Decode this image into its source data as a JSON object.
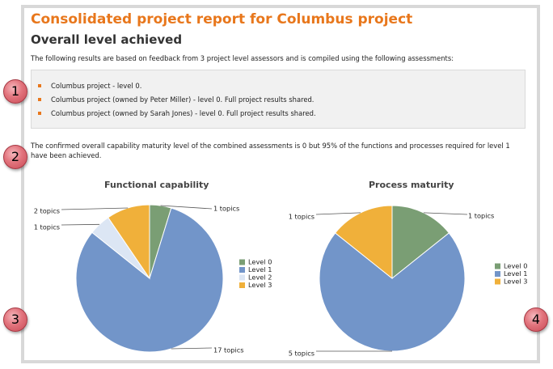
{
  "header": {
    "title": "Consolidated project report for Columbus project",
    "subtitle": "Overall level achieved",
    "intro": "The following results are based on feedback from 3 project level assessors and is compiled using the following assessments:"
  },
  "assessments": [
    "Columbus project - level 0.",
    "Columbus project (owned by Peter Miller) - level 0. Full project results shared.",
    "Columbus project (owned by Sarah Jones) - level 0. Full project results shared."
  ],
  "summary": "The confirmed overall capability maturity level of the combined assessments is 0 but 95% of the functions and processes required for level 1 have been achieved.",
  "markers": [
    "1",
    "2",
    "3",
    "4"
  ],
  "colors": {
    "title": "#e8771c",
    "level0": "#7a9e74",
    "level1": "#7295c9",
    "level2": "#dce6f4",
    "level3": "#f0b03a"
  },
  "chart_data": [
    {
      "type": "pie",
      "title": "Functional capability",
      "categories": [
        "Level 0",
        "Level 1",
        "Level 2",
        "Level 3"
      ],
      "values": [
        1,
        17,
        1,
        2
      ],
      "slice_labels": [
        "1 topics",
        "17 topics",
        "1 topics",
        "2 topics"
      ],
      "legend": [
        "Level 0",
        "Level 1",
        "Level 2",
        "Level 3"
      ],
      "legend_position": "right"
    },
    {
      "type": "pie",
      "title": "Process maturity",
      "categories": [
        "Level 0",
        "Level 1",
        "Level 3"
      ],
      "values": [
        1,
        5,
        1
      ],
      "slice_labels": [
        "1 topics",
        "5 topics",
        "1 topics"
      ],
      "legend": [
        "Level 0",
        "Level 1",
        "Level 3"
      ],
      "legend_position": "right"
    }
  ]
}
